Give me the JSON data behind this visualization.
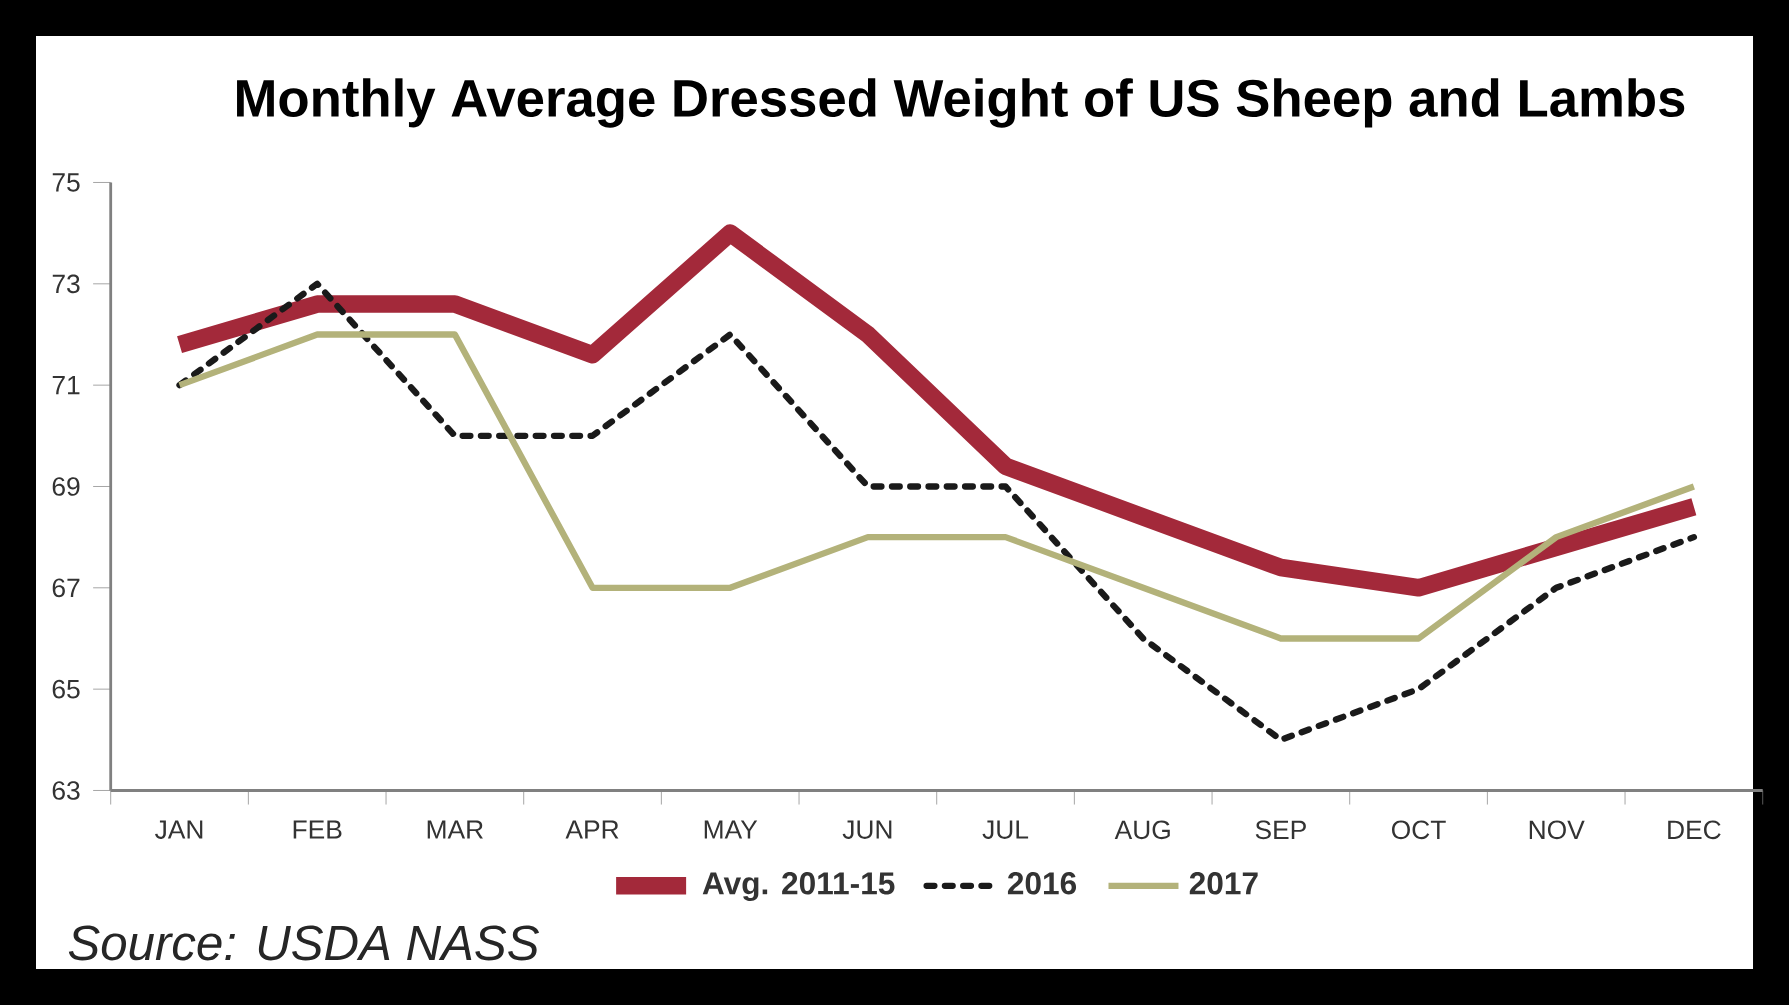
{
  "chart_data": {
    "type": "line",
    "title": "Monthly Average Dressed Weight of US Sheep and Lambs",
    "categories": [
      "JAN",
      "FEB",
      "MAR",
      "APR",
      "MAY",
      "JUN",
      "JUL",
      "AUG",
      "SEP",
      "OCT",
      "NOV",
      "DEC"
    ],
    "series": [
      {
        "name": "Avg. 2011-15",
        "color": "#a3293a",
        "line_style": "solid",
        "values": [
          71.8,
          72.6,
          72.6,
          71.6,
          74.0,
          72.0,
          69.4,
          68.4,
          67.4,
          67.0,
          67.8,
          68.6
        ]
      },
      {
        "name": "2016",
        "color": "#1a1a1a",
        "line_style": "dotted",
        "values": [
          71,
          73,
          70,
          70,
          72,
          69,
          69,
          66,
          64,
          65,
          67,
          68
        ]
      },
      {
        "name": "2017",
        "color": "#b3b27a",
        "line_style": "solid",
        "values": [
          71,
          72,
          72,
          67,
          67,
          68,
          68,
          67,
          66,
          66,
          68,
          69
        ]
      }
    ],
    "ylim": [
      63,
      75
    ],
    "yticks": [
      63,
      65,
      67,
      69,
      71,
      73,
      75
    ],
    "grid": false,
    "legend": "bottom",
    "marker": "none",
    "annotations": [
      "Source: USDA NASS"
    ]
  }
}
